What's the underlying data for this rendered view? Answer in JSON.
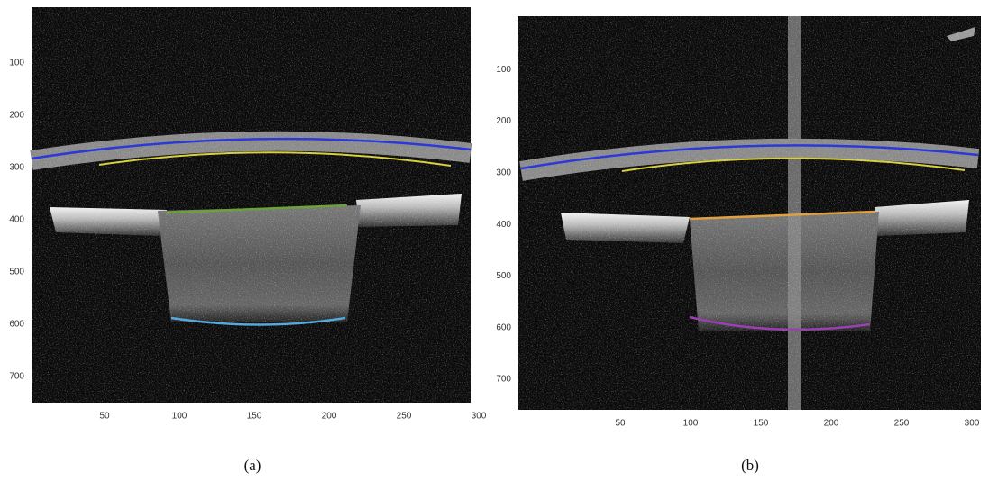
{
  "panels": [
    {
      "caption": "(a)",
      "xticks": [
        50,
        100,
        150,
        200,
        250,
        300
      ],
      "yticks": [
        100,
        200,
        300,
        400,
        500,
        600,
        700
      ]
    },
    {
      "caption": "(b)",
      "xticks": [
        50,
        100,
        150,
        200,
        250,
        300
      ],
      "yticks": [
        100,
        200,
        300,
        400,
        500,
        600,
        700
      ]
    }
  ]
}
